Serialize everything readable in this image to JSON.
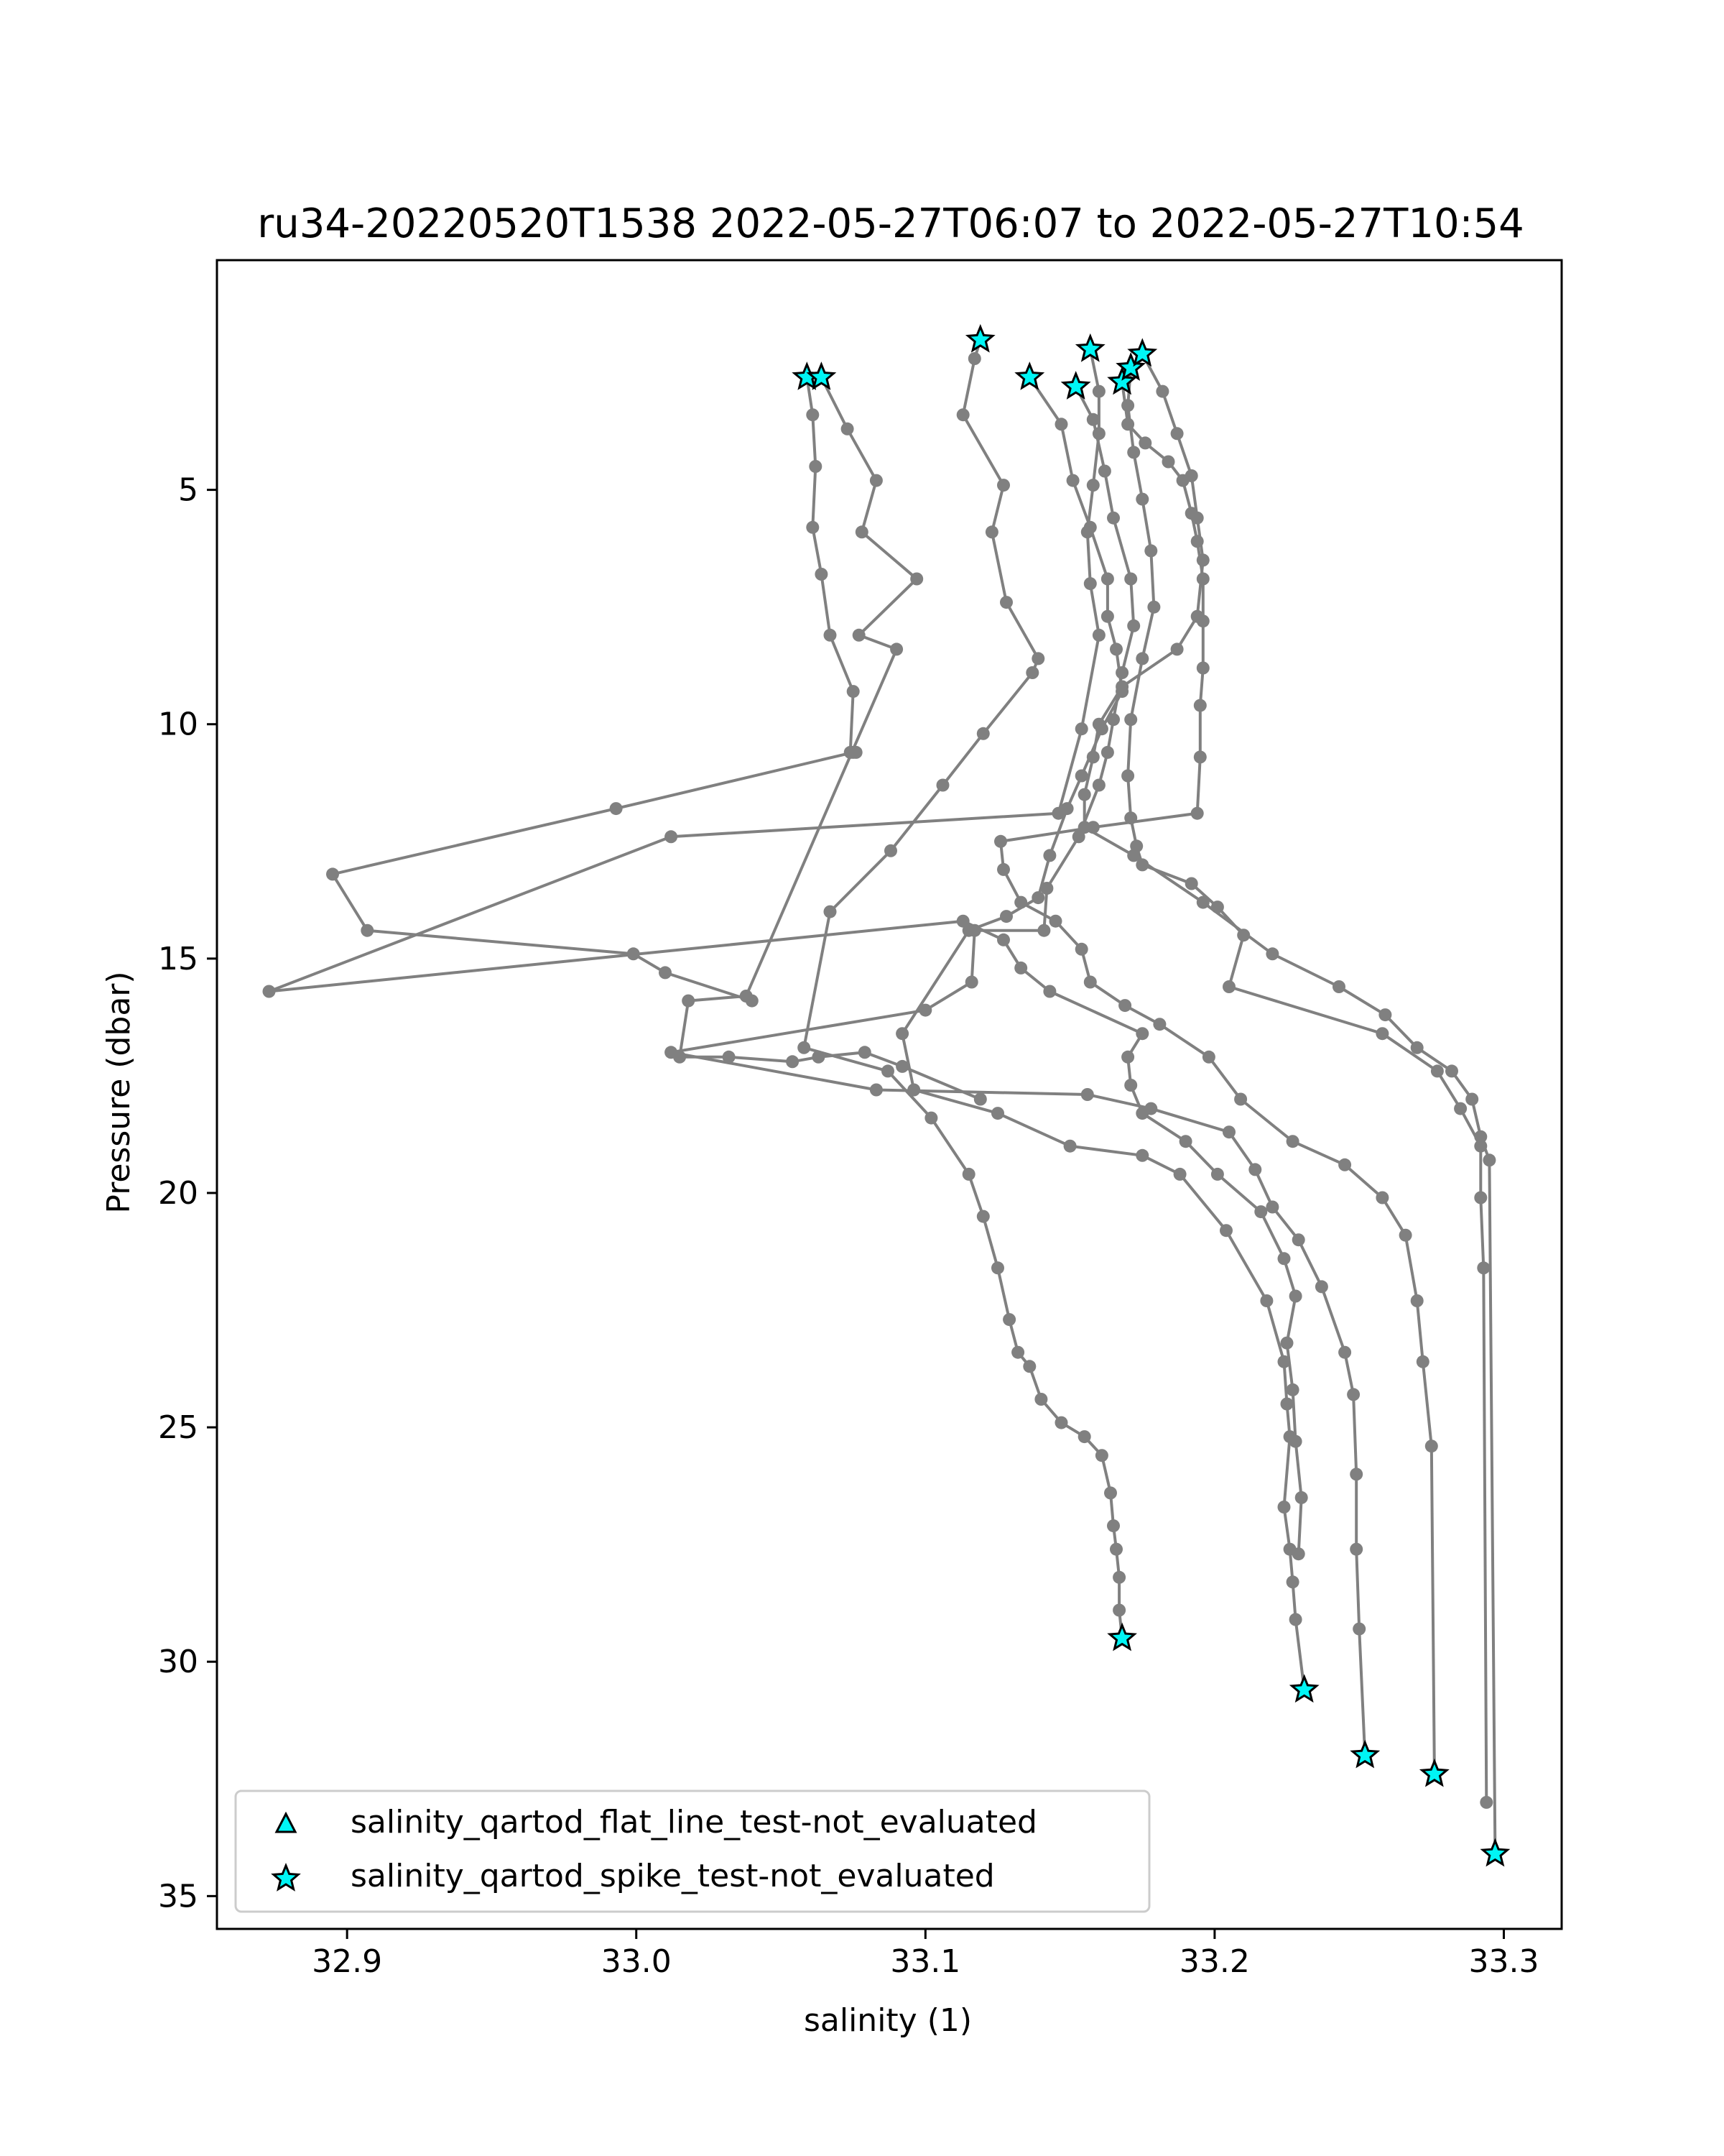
{
  "chart_data": {
    "type": "scatter",
    "title": "ru34-20220520T1538 2022-05-27T06:07 to 2022-05-27T10:54",
    "xlabel": "salinity (1)",
    "ylabel": "Pressure (dbar)",
    "xlim": [
      32.855,
      33.32
    ],
    "ylim": [
      35.7,
      0.1
    ],
    "y_inverted": true,
    "grid": false,
    "legend_placement": "lower-left",
    "x_ticks": [
      "32.9",
      "33.0",
      "33.1",
      "33.2",
      "33.3"
    ],
    "y_ticks": [
      "5",
      "10",
      "15",
      "20",
      "25",
      "30",
      "35"
    ],
    "line_color": "#808080",
    "marker_color": "#00f5f5",
    "marker_edge_color": "#000000",
    "profiles": [
      {
        "x": [
          33.059,
          33.061,
          33.062,
          33.061,
          33.064,
          33.067,
          33.075,
          33.074,
          33.076,
          33.075,
          32.993,
          32.895,
          32.907,
          32.999,
          33.01,
          33.04
        ],
        "y": [
          2.6,
          3.4,
          4.5,
          5.8,
          6.8,
          8.1,
          9.3,
          10.6,
          10.6,
          10.6,
          11.8,
          13.2,
          14.4,
          14.9,
          15.3,
          15.9
        ]
      },
      {
        "x": [
          33.064,
          33.073,
          33.083,
          33.078,
          33.097,
          33.077,
          33.09,
          33.038,
          33.018,
          33.015,
          33.032,
          33.054,
          33.063,
          33.079,
          33.092,
          33.119
        ],
        "y": [
          2.6,
          3.7,
          4.8,
          5.9,
          6.9,
          8.1,
          8.4,
          15.8,
          15.9,
          17.1,
          17.1,
          17.2,
          17.1,
          17.0,
          17.3,
          18.0
        ]
      },
      {
        "x": [
          33.119,
          33.117,
          33.113,
          33.127,
          33.123,
          33.128,
          33.139,
          33.137,
          33.12,
          33.106,
          33.088,
          33.067,
          33.058,
          33.087,
          33.102,
          33.115,
          33.12,
          33.125,
          33.129,
          33.132,
          33.136,
          33.14,
          33.147,
          33.155,
          33.161,
          33.164,
          33.165,
          33.166,
          33.167,
          33.167,
          33.168
        ],
        "y": [
          1.8,
          2.2,
          3.4,
          4.9,
          5.9,
          7.4,
          8.6,
          8.9,
          10.2,
          11.3,
          12.7,
          14.0,
          16.9,
          17.4,
          18.4,
          19.6,
          20.5,
          21.6,
          22.7,
          23.4,
          23.7,
          24.4,
          24.9,
          25.2,
          25.6,
          26.4,
          27.1,
          27.6,
          28.2,
          28.9,
          29.5
        ]
      },
      {
        "x": [
          33.136,
          33.147,
          33.151,
          33.157,
          33.163,
          33.163,
          33.166,
          33.168,
          33.161,
          33.154,
          33.149,
          33.143,
          33.139,
          33.128,
          33.115,
          33.092,
          33.096,
          33.125,
          33.15,
          33.175,
          33.188,
          33.204,
          33.218,
          33.224,
          33.225,
          33.226,
          33.224,
          33.226,
          33.227,
          33.228,
          33.231
        ],
        "y": [
          2.6,
          3.6,
          4.8,
          5.8,
          6.9,
          7.7,
          8.4,
          9.3,
          10.1,
          11.1,
          11.8,
          12.8,
          13.7,
          14.1,
          14.4,
          16.6,
          17.8,
          18.3,
          19.0,
          19.2,
          19.6,
          20.8,
          22.3,
          23.6,
          24.5,
          25.2,
          26.7,
          27.6,
          28.3,
          29.1,
          30.6
        ]
      },
      {
        "x": [
          33.152,
          33.158,
          33.162,
          33.165,
          33.171,
          33.172,
          33.168,
          33.165,
          33.163,
          33.16,
          33.153,
          33.142,
          33.141,
          33.117,
          33.116,
          33.1,
          33.012,
          33.083,
          33.156,
          33.178,
          33.205,
          33.214,
          33.22,
          33.229,
          33.237,
          33.245,
          33.248,
          33.249,
          33.249,
          33.25,
          33.252
        ],
        "y": [
          2.8,
          3.5,
          4.6,
          5.6,
          6.9,
          7.9,
          8.9,
          9.9,
          10.6,
          11.3,
          12.4,
          13.5,
          14.4,
          14.4,
          15.5,
          16.1,
          17.0,
          17.8,
          17.9,
          18.2,
          18.7,
          19.5,
          20.3,
          21.0,
          22.0,
          23.4,
          24.3,
          26.0,
          27.6,
          29.3,
          32.0
        ]
      },
      {
        "x": [
          33.157,
          33.16,
          33.16,
          33.158,
          33.156,
          33.157,
          33.16,
          33.154,
          33.146,
          33.012,
          32.873,
          33.113,
          33.127,
          33.133,
          33.143,
          33.175,
          33.17,
          33.171,
          33.175,
          33.19,
          33.201,
          33.216,
          33.224,
          33.228,
          33.225,
          33.227,
          33.228,
          33.23,
          33.229
        ],
        "y": [
          2.0,
          2.9,
          3.8,
          4.9,
          5.9,
          7.0,
          8.1,
          10.1,
          11.9,
          12.4,
          15.7,
          14.2,
          14.6,
          15.2,
          15.7,
          16.6,
          17.1,
          17.7,
          18.3,
          18.9,
          19.6,
          20.4,
          21.4,
          22.2,
          23.2,
          24.2,
          25.3,
          26.5,
          27.7
        ]
      },
      {
        "x": [
          33.168,
          33.17,
          33.176,
          33.184,
          33.189,
          33.192,
          33.194,
          33.196,
          33.196,
          33.196,
          33.195,
          33.195,
          33.194,
          33.158,
          33.126,
          33.127,
          33.133,
          33.145,
          33.154,
          33.157,
          33.169,
          33.181,
          33.198,
          33.209,
          33.227,
          33.245,
          33.258,
          33.266,
          33.27,
          33.272,
          33.275,
          33.276
        ],
        "y": [
          2.7,
          3.6,
          4.0,
          4.4,
          4.8,
          5.5,
          6.1,
          6.9,
          7.8,
          8.8,
          9.6,
          10.7,
          11.9,
          12.2,
          12.5,
          13.1,
          13.8,
          14.2,
          14.8,
          15.5,
          16.0,
          16.4,
          17.1,
          18.0,
          18.9,
          19.4,
          20.1,
          20.9,
          22.3,
          23.6,
          25.4,
          32.4
        ]
      },
      {
        "x": [
          33.171,
          33.17,
          33.172,
          33.175,
          33.178,
          33.179,
          33.175,
          33.171,
          33.17,
          33.171,
          33.173,
          33.175,
          33.192,
          33.201,
          33.21,
          33.205,
          33.258,
          33.277,
          33.285,
          33.292,
          33.292,
          33.293,
          33.294
        ],
        "y": [
          2.4,
          3.2,
          4.2,
          5.2,
          6.3,
          7.5,
          8.6,
          9.9,
          11.1,
          12.0,
          12.6,
          13.0,
          13.4,
          13.9,
          14.5,
          15.6,
          16.6,
          17.4,
          18.2,
          19.0,
          20.1,
          21.6,
          33.0
        ]
      },
      {
        "x": [
          33.175,
          33.182,
          33.187,
          33.192,
          33.194,
          33.196,
          33.194,
          33.187,
          33.168,
          33.16,
          33.158,
          33.155,
          33.155,
          33.172,
          33.196,
          33.22,
          33.243,
          33.259,
          33.27,
          33.282,
          33.289,
          33.292,
          33.295,
          33.297
        ],
        "y": [
          2.1,
          2.9,
          3.8,
          4.7,
          5.6,
          6.5,
          7.7,
          8.4,
          9.2,
          10.0,
          10.7,
          11.5,
          12.2,
          12.8,
          13.8,
          14.9,
          15.6,
          16.2,
          16.9,
          17.4,
          18.0,
          18.8,
          19.3,
          34.1
        ]
      }
    ],
    "qc_markers": {
      "flat_line_not_evaluated": [],
      "spike_not_evaluated": [
        {
          "x": 33.059,
          "y": 2.6
        },
        {
          "x": 33.064,
          "y": 2.6
        },
        {
          "x": 33.119,
          "y": 1.8
        },
        {
          "x": 33.136,
          "y": 2.6
        },
        {
          "x": 33.152,
          "y": 2.8
        },
        {
          "x": 33.157,
          "y": 2.0
        },
        {
          "x": 33.168,
          "y": 2.7
        },
        {
          "x": 33.171,
          "y": 2.4
        },
        {
          "x": 33.175,
          "y": 2.1
        },
        {
          "x": 33.168,
          "y": 29.5
        },
        {
          "x": 33.231,
          "y": 30.6
        },
        {
          "x": 33.252,
          "y": 32.0
        },
        {
          "x": 33.276,
          "y": 32.4
        },
        {
          "x": 33.297,
          "y": 34.1
        }
      ]
    },
    "legend": [
      {
        "marker": "triangle",
        "label": "salinity_qartod_flat_line_test-not_evaluated"
      },
      {
        "marker": "star",
        "label": "salinity_qartod_spike_test-not_evaluated"
      }
    ]
  }
}
